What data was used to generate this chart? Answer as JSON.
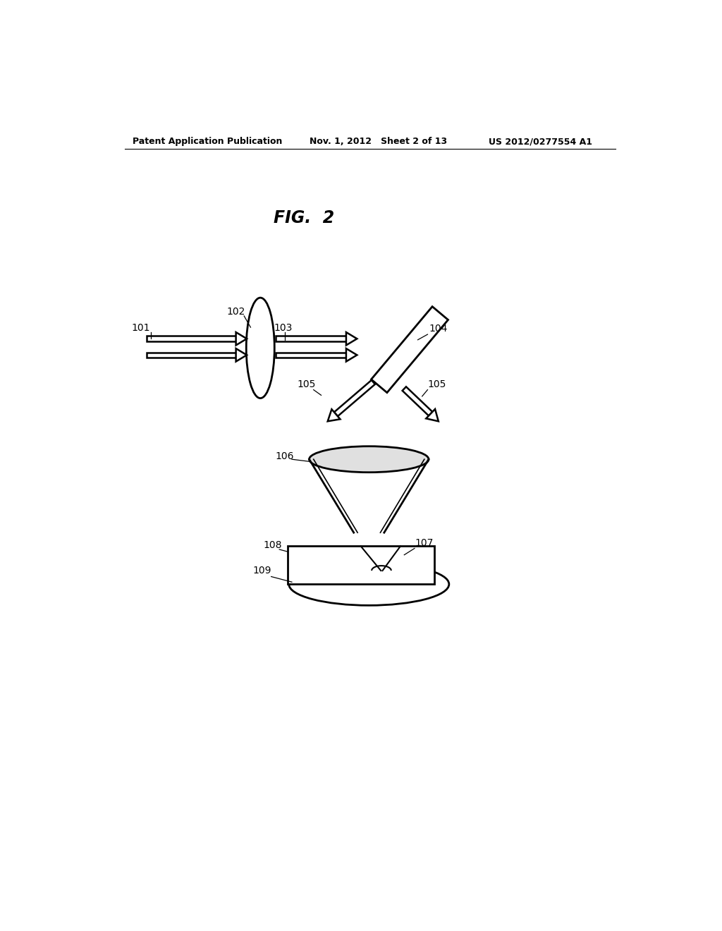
{
  "bg_color": "#ffffff",
  "fig_title": "FIG.  2",
  "header_left": "Patent Application Publication",
  "header_mid": "Nov. 1, 2012   Sheet 2 of 13",
  "header_right": "US 2012/0277554 A1",
  "lw_main": 2.0,
  "lw_thin": 1.5,
  "label_fontsize": 10,
  "header_fontsize": 9,
  "title_fontsize": 17
}
